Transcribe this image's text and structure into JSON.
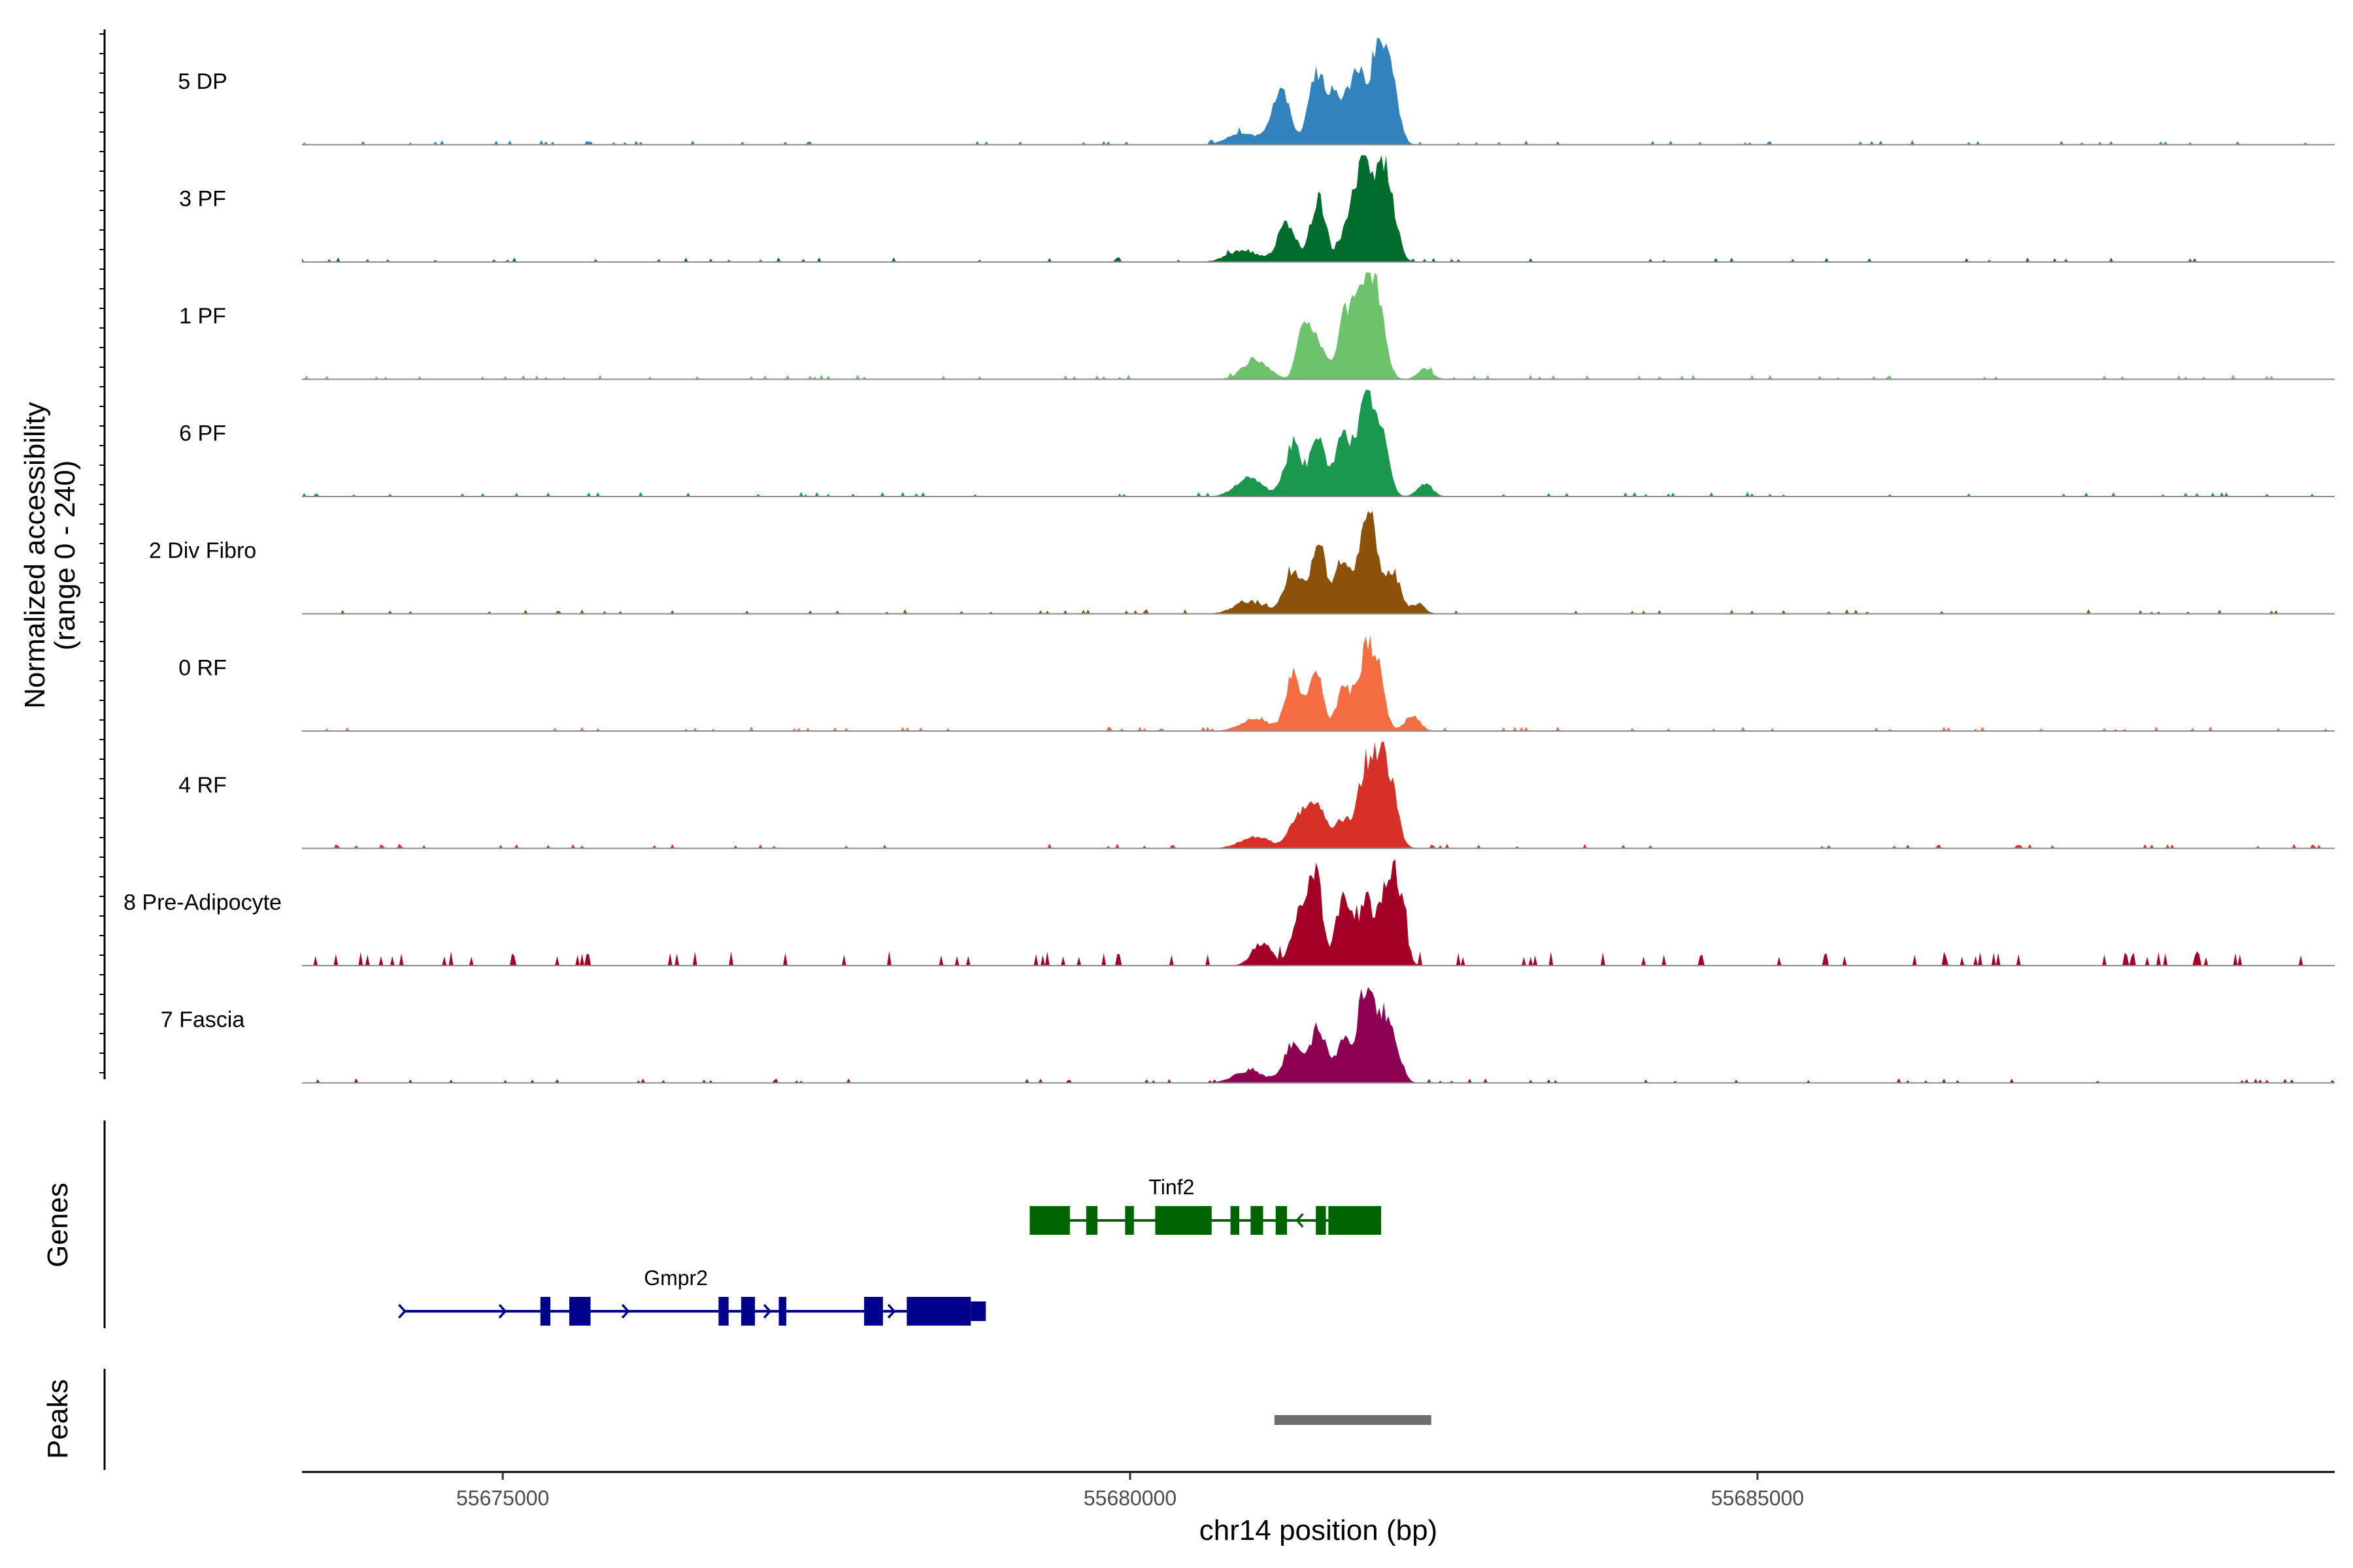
{
  "chart_data": {
    "type": "area",
    "title": "",
    "ylabel_line1": "Normalized accessibility",
    "ylabel_line2": "(range 0 - 240)",
    "yrange": [
      0,
      240
    ],
    "xlabel": "chr14 position (bp)",
    "xlim": [
      55673400,
      55689600
    ],
    "xticks": [
      {
        "value": 55675000,
        "label": "55675000"
      },
      {
        "value": 55680000,
        "label": "55680000"
      },
      {
        "value": 55685000,
        "label": "55685000"
      }
    ],
    "tracks": [
      {
        "name": "5 DP",
        "color": "#3182bd"
      },
      {
        "name": "3 PF",
        "color": "#006d2c"
      },
      {
        "name": "1 PF",
        "color": "#6cc36b"
      },
      {
        "name": "6 PF",
        "color": "#1a9850"
      },
      {
        "name": "2 Div Fibro",
        "color": "#8c510a"
      },
      {
        "name": "0 RF",
        "color": "#f46d43"
      },
      {
        "name": "4 RF",
        "color": "#d73027"
      },
      {
        "name": "8 Pre-Adipocyte",
        "color": "#a50026"
      },
      {
        "name": "7 Fascia",
        "color": "#8e0152"
      }
    ],
    "peak_profiles": [
      {
        "centers": [
          55680900,
          55681200,
          55681480,
          55681620,
          55681800,
          55681980,
          55682080
        ],
        "heights": [
          0.12,
          0.55,
          0.72,
          0.45,
          0.75,
          0.98,
          0.55
        ],
        "widths": [
          120,
          70,
          60,
          60,
          70,
          60,
          60
        ]
      },
      {
        "centers": [
          55680900,
          55681250,
          55681500,
          55681750,
          55681860,
          55682000,
          55682080
        ],
        "heights": [
          0.12,
          0.4,
          0.62,
          0.48,
          0.95,
          0.8,
          0.42
        ],
        "widths": [
          120,
          70,
          60,
          60,
          50,
          60,
          60
        ]
      },
      {
        "centers": [
          55681000,
          55681380,
          55681500,
          55681720,
          55681870,
          55681980,
          55682350
        ],
        "heights": [
          0.2,
          0.58,
          0.35,
          0.68,
          0.9,
          0.7,
          0.1
        ],
        "widths": [
          100,
          50,
          60,
          60,
          60,
          60,
          60
        ]
      },
      {
        "centers": [
          55680950,
          55681300,
          55681500,
          55681700,
          55681870,
          55682000,
          55682350
        ],
        "heights": [
          0.18,
          0.5,
          0.58,
          0.62,
          0.92,
          0.62,
          0.12
        ],
        "widths": [
          110,
          70,
          60,
          60,
          60,
          60,
          60
        ]
      },
      {
        "centers": [
          55680950,
          55681300,
          55681500,
          55681700,
          55681900,
          55682100,
          55682300
        ],
        "heights": [
          0.12,
          0.45,
          0.7,
          0.55,
          1.0,
          0.4,
          0.1
        ],
        "widths": [
          120,
          70,
          60,
          60,
          70,
          60,
          50
        ]
      },
      {
        "centers": [
          55681000,
          55681300,
          55681480,
          55681700,
          55681860,
          55681960,
          55682250
        ],
        "heights": [
          0.12,
          0.55,
          0.68,
          0.4,
          0.6,
          0.62,
          0.15
        ],
        "widths": [
          120,
          60,
          50,
          60,
          60,
          60,
          60
        ]
      },
      {
        "centers": [
          55681000,
          55681350,
          55681500,
          55681700,
          55681860,
          55681980,
          55682080
        ],
        "heights": [
          0.12,
          0.35,
          0.42,
          0.3,
          0.68,
          0.88,
          0.5
        ],
        "widths": [
          120,
          70,
          60,
          60,
          50,
          60,
          60
        ]
      },
      {
        "centers": [
          55681050,
          55681350,
          55681480,
          55681700,
          55681880,
          55682050,
          55682150
        ],
        "heights": [
          0.22,
          0.55,
          0.95,
          0.7,
          0.65,
          0.75,
          0.6
        ],
        "widths": [
          80,
          60,
          50,
          60,
          60,
          60,
          50
        ]
      },
      {
        "centers": [
          55680950,
          55681300,
          55681500,
          55681700,
          55681870,
          55682000,
          55682100
        ],
        "heights": [
          0.12,
          0.4,
          0.55,
          0.4,
          0.88,
          0.55,
          0.38
        ],
        "widths": [
          120,
          70,
          60,
          60,
          60,
          60,
          60
        ]
      }
    ],
    "genes": [
      {
        "name": "Tinf2",
        "color": "#006400",
        "strand": "-",
        "start": 55679200,
        "end": 55682000,
        "row": 0,
        "exons": [
          [
            55679200,
            55679520
          ],
          [
            55679650,
            55679740
          ],
          [
            55679960,
            55680030
          ],
          [
            55680200,
            55680650
          ],
          [
            55680800,
            55680870
          ],
          [
            55680960,
            55681060
          ],
          [
            55681160,
            55681250
          ],
          [
            55681480,
            55681560
          ],
          [
            55681580,
            55682000
          ]
        ],
        "arrows": [
          55681330
        ]
      },
      {
        "name": "Gmpr2",
        "color": "#00008b",
        "strand": "+",
        "start": 55674220,
        "end": 55678850,
        "row": 1,
        "exons": [
          [
            55675300,
            55675380
          ],
          [
            55675530,
            55675700
          ],
          [
            55676720,
            55676800
          ],
          [
            55676900,
            55677010
          ],
          [
            55677200,
            55677260
          ],
          [
            55677880,
            55678030
          ],
          [
            55678220,
            55678730
          ],
          [
            55678730,
            55678850
          ]
        ],
        "arrows": [
          55674220,
          55675020,
          55676000,
          55677130,
          55678120
        ]
      }
    ],
    "peaks": [
      {
        "start": 55681150,
        "end": 55682400
      }
    ],
    "panel_titles": {
      "genes": "Genes",
      "peaks": "Peaks"
    }
  }
}
